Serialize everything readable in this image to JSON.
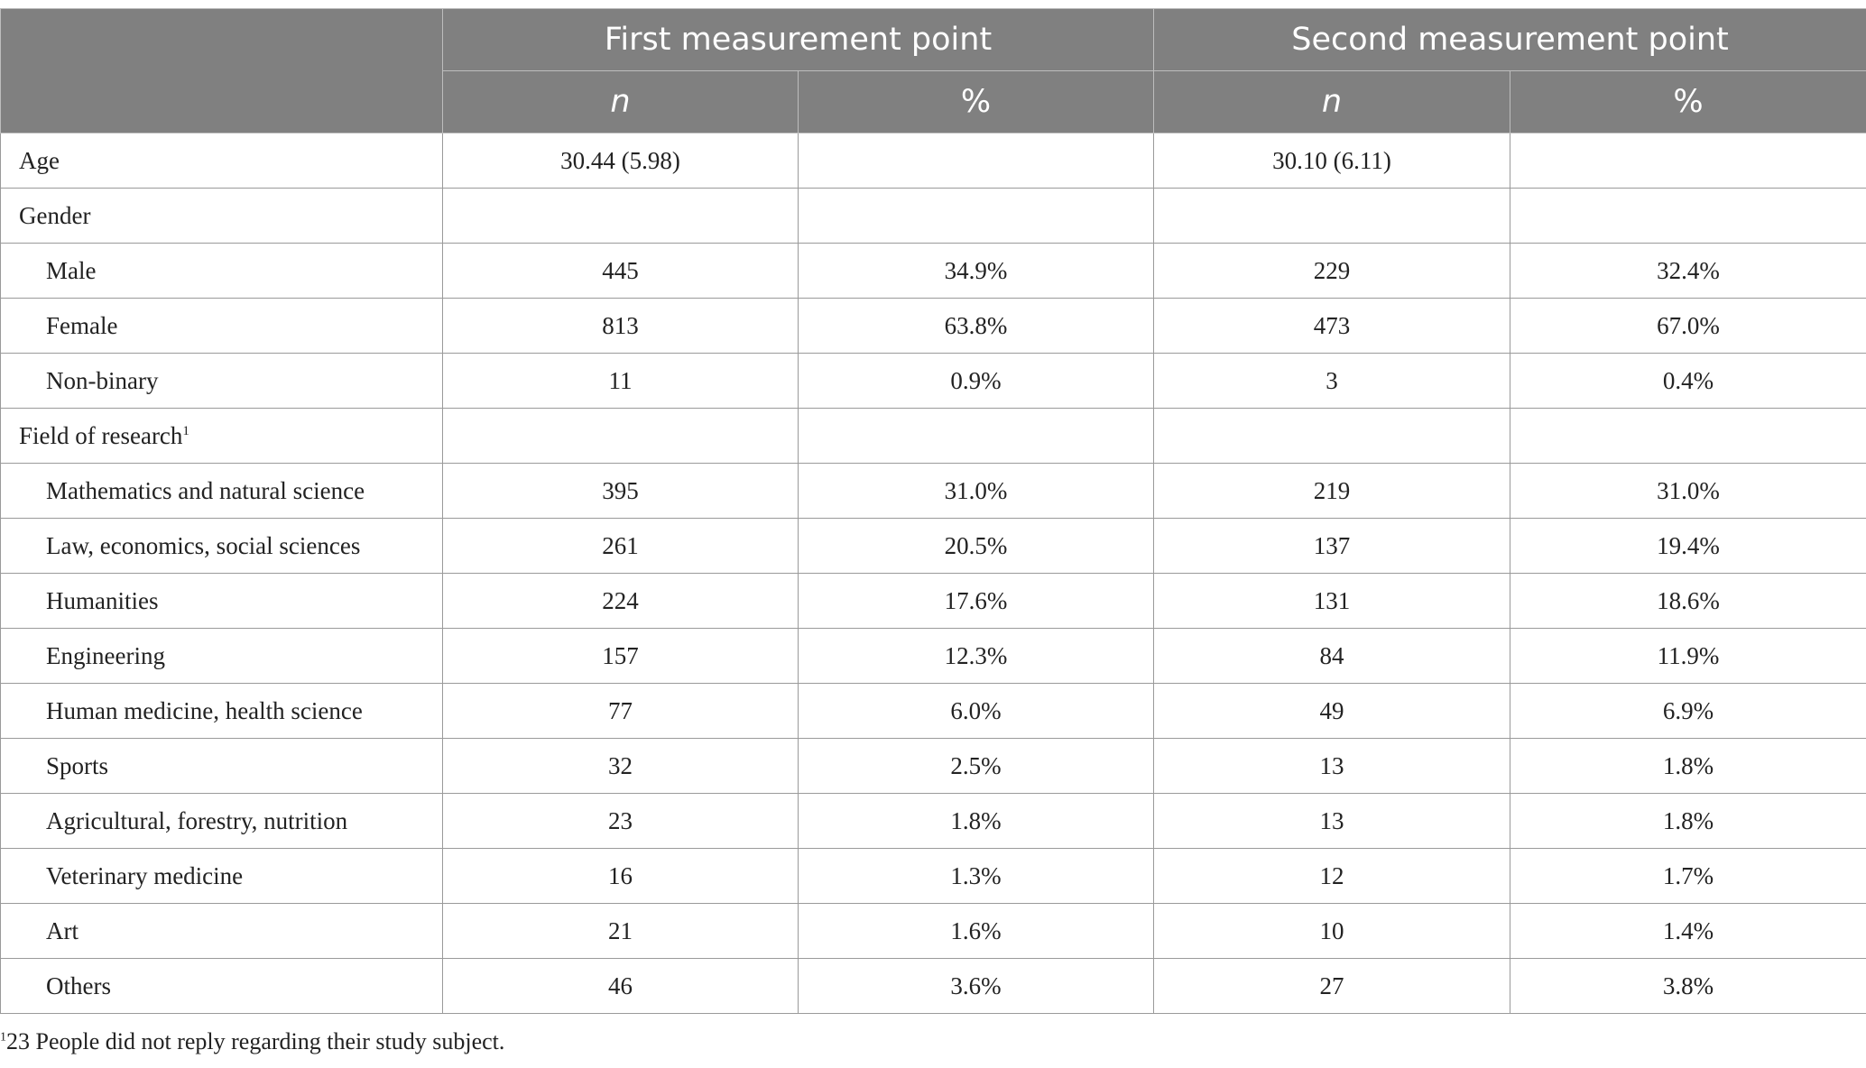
{
  "header": {
    "group_1": "First measurement point",
    "group_2": "Second measurement point",
    "col_n": "n",
    "col_pct": "%"
  },
  "rows": [
    {
      "label": "Age",
      "indent": false,
      "sup": "",
      "n1": "30.44 (5.98)",
      "p1": "",
      "n2": "30.10 (6.11)",
      "p2": ""
    },
    {
      "label": "Gender",
      "indent": false,
      "sup": "",
      "n1": "",
      "p1": "",
      "n2": "",
      "p2": ""
    },
    {
      "label": "Male",
      "indent": true,
      "sup": "",
      "n1": "445",
      "p1": "34.9%",
      "n2": "229",
      "p2": "32.4%"
    },
    {
      "label": "Female",
      "indent": true,
      "sup": "",
      "n1": "813",
      "p1": "63.8%",
      "n2": "473",
      "p2": "67.0%"
    },
    {
      "label": "Non-binary",
      "indent": true,
      "sup": "",
      "n1": "11",
      "p1": "0.9%",
      "n2": "3",
      "p2": "0.4%"
    },
    {
      "label": "Field of research",
      "indent": false,
      "sup": "1",
      "n1": "",
      "p1": "",
      "n2": "",
      "p2": ""
    },
    {
      "label": "Mathematics and natural science",
      "indent": true,
      "sup": "",
      "n1": "395",
      "p1": "31.0%",
      "n2": "219",
      "p2": "31.0%"
    },
    {
      "label": "Law, economics, social sciences",
      "indent": true,
      "sup": "",
      "n1": "261",
      "p1": "20.5%",
      "n2": "137",
      "p2": "19.4%"
    },
    {
      "label": "Humanities",
      "indent": true,
      "sup": "",
      "n1": "224",
      "p1": "17.6%",
      "n2": "131",
      "p2": "18.6%"
    },
    {
      "label": "Engineering",
      "indent": true,
      "sup": "",
      "n1": "157",
      "p1": "12.3%",
      "n2": "84",
      "p2": "11.9%"
    },
    {
      "label": "Human medicine, health science",
      "indent": true,
      "sup": "",
      "n1": "77",
      "p1": "6.0%",
      "n2": "49",
      "p2": "6.9%"
    },
    {
      "label": "Sports",
      "indent": true,
      "sup": "",
      "n1": "32",
      "p1": "2.5%",
      "n2": "13",
      "p2": "1.8%"
    },
    {
      "label": "Agricultural, forestry, nutrition",
      "indent": true,
      "sup": "",
      "n1": "23",
      "p1": "1.8%",
      "n2": "13",
      "p2": "1.8%"
    },
    {
      "label": "Veterinary medicine",
      "indent": true,
      "sup": "",
      "n1": "16",
      "p1": "1.3%",
      "n2": "12",
      "p2": "1.7%"
    },
    {
      "label": "Art",
      "indent": true,
      "sup": "",
      "n1": "21",
      "p1": "1.6%",
      "n2": "10",
      "p2": "1.4%"
    },
    {
      "label": "Others",
      "indent": true,
      "sup": "",
      "n1": "46",
      "p1": "3.6%",
      "n2": "27",
      "p2": "3.8%"
    }
  ],
  "footnote": {
    "marker": "1",
    "text": "23 People did not reply regarding their study subject."
  }
}
